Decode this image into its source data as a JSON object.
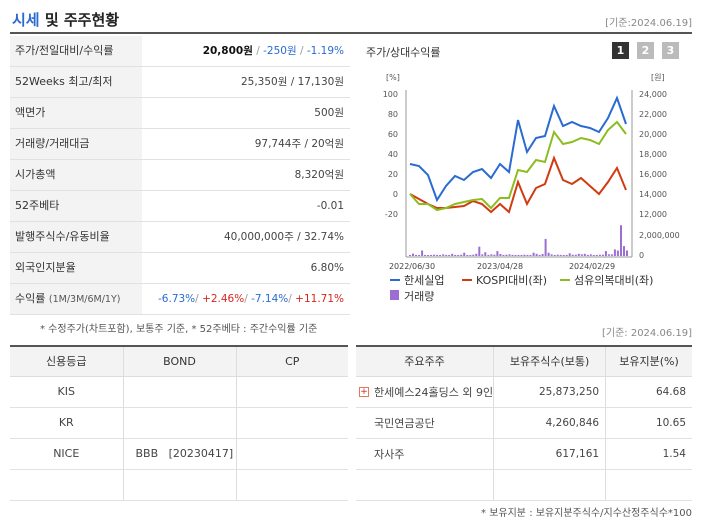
{
  "header": {
    "title_main": "시세",
    "title_rest": "및 주주현황",
    "date": "[기준:2024.06.19]"
  },
  "stats": {
    "price_label": "주가/전일대비/수익률",
    "price": "20,800원",
    "change": "-250원",
    "change_pct": "-1.19%",
    "w52_label": "52Weeks 최고/최저",
    "w52_value": "25,350원 / 17,130원",
    "face_label": "액면가",
    "face_value": "500원",
    "volume_label": "거래량/거래대금",
    "volume_value": "97,744주 / 20억원",
    "mcap_label": "시가총액",
    "mcap_value": "8,320억원",
    "beta_label": "52주베타",
    "beta_value": "-0.01",
    "shares_label": "발행주식수/유동비율",
    "shares_value": "40,000,000주 / 32.74%",
    "foreign_label": "외국인지분율",
    "foreign_value": "6.80%",
    "return_label": "수익률",
    "return_periods": "(1M/3M/6M/1Y)",
    "returns": [
      "-6.73%",
      "+2.46%",
      "-7.14%",
      "+11.71%"
    ],
    "note": "* 수정주가(차트포함), 보통주 기준, * 52주베타 : 주간수익률 기준"
  },
  "chart_panel": {
    "title": "주가/상대수익률",
    "tabs": [
      "1",
      "2",
      "3"
    ]
  },
  "chart_data": {
    "type": "line",
    "left_unit": "[%]",
    "right_unit": "[원]",
    "left_ticks": [
      100,
      80,
      60,
      40,
      20,
      0,
      -20
    ],
    "right_ticks": [
      "24,000",
      "22,000",
      "20,000",
      "18,000",
      "16,000",
      "14,000",
      "12,000"
    ],
    "volume_tick": "2,000,000",
    "volume_zero": "0",
    "x_ticks": [
      "2022/06/30",
      "2023/04/28",
      "2024/02/29"
    ],
    "ylim_left": [
      -20,
      100
    ],
    "series": [
      {
        "name": "한세실업",
        "color": "#2a6bd1",
        "axis": "left",
        "values": [
          30,
          28,
          19,
          -6,
          8,
          18,
          14,
          22,
          25,
          16,
          30,
          22,
          74,
          42,
          56,
          58,
          88,
          68,
          72,
          68,
          66,
          62,
          76,
          96,
          70
        ]
      },
      {
        "name": "KOSPI대비(좌)",
        "color": "#d13b12",
        "axis": "left",
        "values": [
          0,
          -5,
          -10,
          -14,
          -14,
          -13,
          -12,
          -7,
          -10,
          -18,
          -10,
          -18,
          12,
          -10,
          6,
          10,
          36,
          14,
          10,
          16,
          8,
          0,
          12,
          26,
          4
        ]
      },
      {
        "name": "섬유의복대비(좌)",
        "color": "#8cbd1f",
        "axis": "left",
        "values": [
          0,
          -10,
          -10,
          -16,
          -14,
          -10,
          -8,
          -6,
          -5,
          -14,
          -4,
          -4,
          24,
          22,
          34,
          32,
          62,
          50,
          52,
          56,
          54,
          50,
          64,
          72,
          60
        ]
      }
    ],
    "volume": {
      "name": "거래량",
      "color": "#9b6fd1",
      "values": [
        0.05,
        0.22,
        0.1,
        0.08,
        0.5,
        0.1,
        0.08,
        0.1,
        0.12,
        0.1,
        0.08,
        0.15,
        0.1,
        0.08,
        0.2,
        0.1,
        0.08,
        0.12,
        0.3,
        0.1,
        0.08,
        0.12,
        0.2,
        0.85,
        0.15,
        0.35,
        0.1,
        0.15,
        0.12,
        0.45,
        0.18,
        0.1,
        0.12,
        0.15,
        0.1,
        0.05,
        0.1,
        0.08,
        0.12,
        0.1,
        0.08,
        0.3,
        0.2,
        0.1,
        0.18,
        1.55,
        0.3,
        0.15,
        0.1,
        0.12,
        0.1,
        0.08,
        0.1,
        0.25,
        0.12,
        0.12,
        0.2,
        0.15,
        0.2,
        0.1,
        0.15,
        0.08,
        0.1,
        0.12,
        0.12,
        0.45,
        0.15,
        0.15,
        0.6,
        0.5,
        2.8,
        0.9,
        0.5
      ]
    },
    "legend": [
      "한세실업",
      "KOSPI대비(좌)",
      "섬유의복대비(좌)",
      "거래량"
    ]
  },
  "credit": {
    "headers": [
      "신용등급",
      "BOND",
      "CP"
    ],
    "rows": [
      [
        "KIS",
        "",
        ""
      ],
      [
        "KR",
        "",
        ""
      ],
      [
        "NICE",
        "BBB   [20230417]",
        ""
      ],
      [
        "",
        "",
        ""
      ]
    ]
  },
  "holders": {
    "date": "[기준: 2024.06.19]",
    "headers": [
      "주요주주",
      "보유주식수(보통)",
      "보유지분(%)"
    ],
    "rows": [
      [
        "한세예스24홀딩스 외 9인",
        "25,873,250",
        "64.68"
      ],
      [
        "국민연금공단",
        "4,260,846",
        "10.65"
      ],
      [
        "자사주",
        "617,161",
        "1.54"
      ],
      [
        "",
        "",
        ""
      ]
    ],
    "note": "* 보유지분 : 보유지분주식수/지수산정주식수*100"
  }
}
